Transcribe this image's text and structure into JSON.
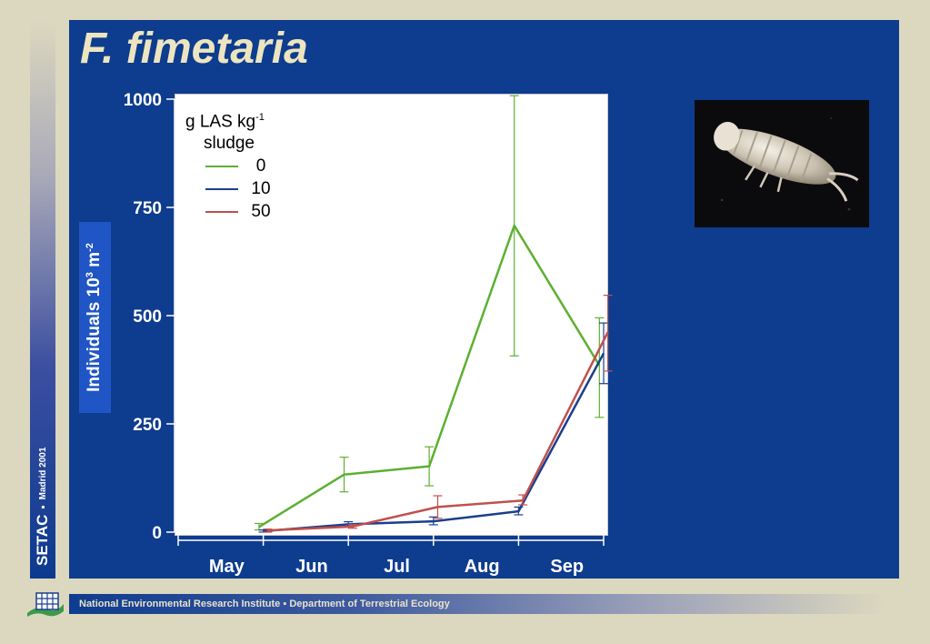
{
  "slide": {
    "title": "F. fimetaria",
    "side_label": "SETAC",
    "side_label_sub": "Madrid 2001",
    "side_separator": "▪",
    "footer": {
      "institute": "National Environmental Research Institute",
      "separator": "▪",
      "department": "Department of Terrestrial Ecology"
    },
    "photo_icon": "springtail-photo",
    "logo_icon": "institute-logo"
  },
  "chart_data": {
    "type": "line",
    "title": "",
    "xlabel": "",
    "ylabel": "Individuals 10",
    "ylabel_sup1": "3",
    "ylabel_mid": " m",
    "ylabel_sup2": "-2",
    "categories": [
      "May",
      "Jun",
      "Jul",
      "Aug",
      "Sep"
    ],
    "ylim": [
      0,
      1000
    ],
    "yticks": [
      "0",
      "250",
      "500",
      "750",
      "1000"
    ],
    "grid": false,
    "legend": {
      "placement": "top-left",
      "title_line1": "g LAS kg",
      "title_sup": "-1",
      "title_line2": "sludge"
    },
    "series": [
      {
        "name": "0",
        "color": "#5cb031",
        "points": [
          [
            1.0,
            12
          ],
          [
            2.0,
            133
          ],
          [
            3.0,
            152
          ],
          [
            4.0,
            708
          ],
          [
            5.0,
            385
          ]
        ],
        "error": [
          [
            1.0,
            5,
            20
          ],
          [
            2.0,
            93,
            173
          ],
          [
            3.0,
            107,
            197
          ],
          [
            4.0,
            407,
            1008
          ],
          [
            5.0,
            265,
            495
          ]
        ]
      },
      {
        "name": "10",
        "color": "#1a3f8c",
        "points": [
          [
            1.0,
            2
          ],
          [
            2.0,
            18
          ],
          [
            3.0,
            25
          ],
          [
            4.0,
            48
          ],
          [
            5.0,
            413
          ]
        ],
        "error": [
          [
            1.0,
            0,
            5
          ],
          [
            2.0,
            13,
            24
          ],
          [
            3.0,
            17,
            35
          ],
          [
            4.0,
            40,
            58
          ],
          [
            5.0,
            343,
            483
          ]
        ]
      },
      {
        "name": "50",
        "color": "#c0504d",
        "points": [
          [
            1.0,
            4
          ],
          [
            2.0,
            13
          ],
          [
            3.0,
            58
          ],
          [
            4.0,
            73
          ],
          [
            5.0,
            462
          ]
        ],
        "error": [
          [
            1.0,
            0,
            7
          ],
          [
            2.0,
            9,
            18
          ],
          [
            3.0,
            32,
            84
          ],
          [
            4.0,
            63,
            86
          ],
          [
            5.0,
            372,
            547
          ]
        ]
      }
    ]
  }
}
